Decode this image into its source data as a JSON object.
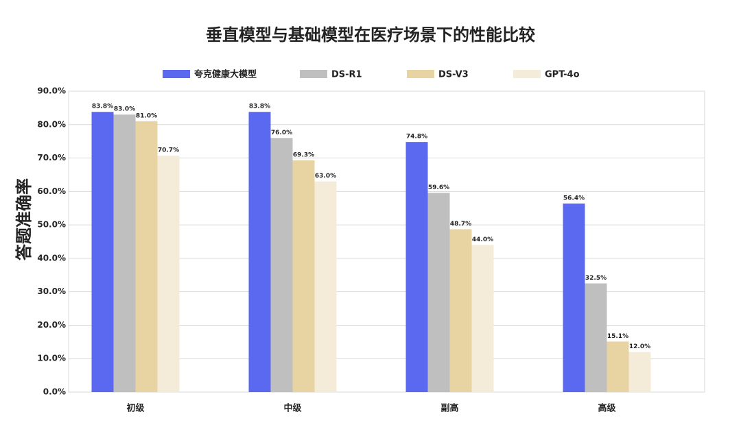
{
  "chart_data": {
    "type": "bar",
    "title": "垂直模型与基础模型在医疗场景下的性能比较",
    "y_label": "答题准确率",
    "categories": [
      "初级",
      "中级",
      "副高",
      "高级"
    ],
    "series": [
      {
        "name": "夸克健康大模型",
        "color": "#5b68f0",
        "values": [
          83.8,
          83.8,
          74.8,
          56.4
        ],
        "value_labels": [
          "83.8%",
          "83.8%",
          "74.8%",
          "56.4%"
        ]
      },
      {
        "name": "DS-R1",
        "color": "#bfbfbf",
        "values": [
          83.0,
          76.0,
          59.6,
          32.5
        ],
        "value_labels": [
          "83.0%",
          "76.0%",
          "59.6%",
          "32.5%"
        ]
      },
      {
        "name": "DS-V3",
        "color": "#e8d3a3",
        "values": [
          81.0,
          69.3,
          48.7,
          15.1
        ],
        "value_labels": [
          "81.0%",
          "69.3%",
          "48.7%",
          "15.1%"
        ]
      },
      {
        "name": "GPT-4o",
        "color": "#f4ecd8",
        "values": [
          70.7,
          63.0,
          44.0,
          12.0
        ],
        "value_labels": [
          "70.7%",
          "63.0%",
          "44.0%",
          "12.0%"
        ]
      }
    ],
    "ylim": [
      0,
      90
    ],
    "yticks": [
      {
        "value": 0,
        "label": "0.0%"
      },
      {
        "value": 10,
        "label": "10.0%"
      },
      {
        "value": 20,
        "label": "20.0%"
      },
      {
        "value": 30,
        "label": "30.0%"
      },
      {
        "value": 40,
        "label": "40.0%"
      },
      {
        "value": 50,
        "label": "50.0%"
      },
      {
        "value": 60,
        "label": "60.0%"
      },
      {
        "value": 70,
        "label": "70.0%"
      },
      {
        "value": 80,
        "label": "80.0%"
      },
      {
        "value": 90,
        "label": "90.0%"
      }
    ],
    "grid": true,
    "legend": "top"
  }
}
